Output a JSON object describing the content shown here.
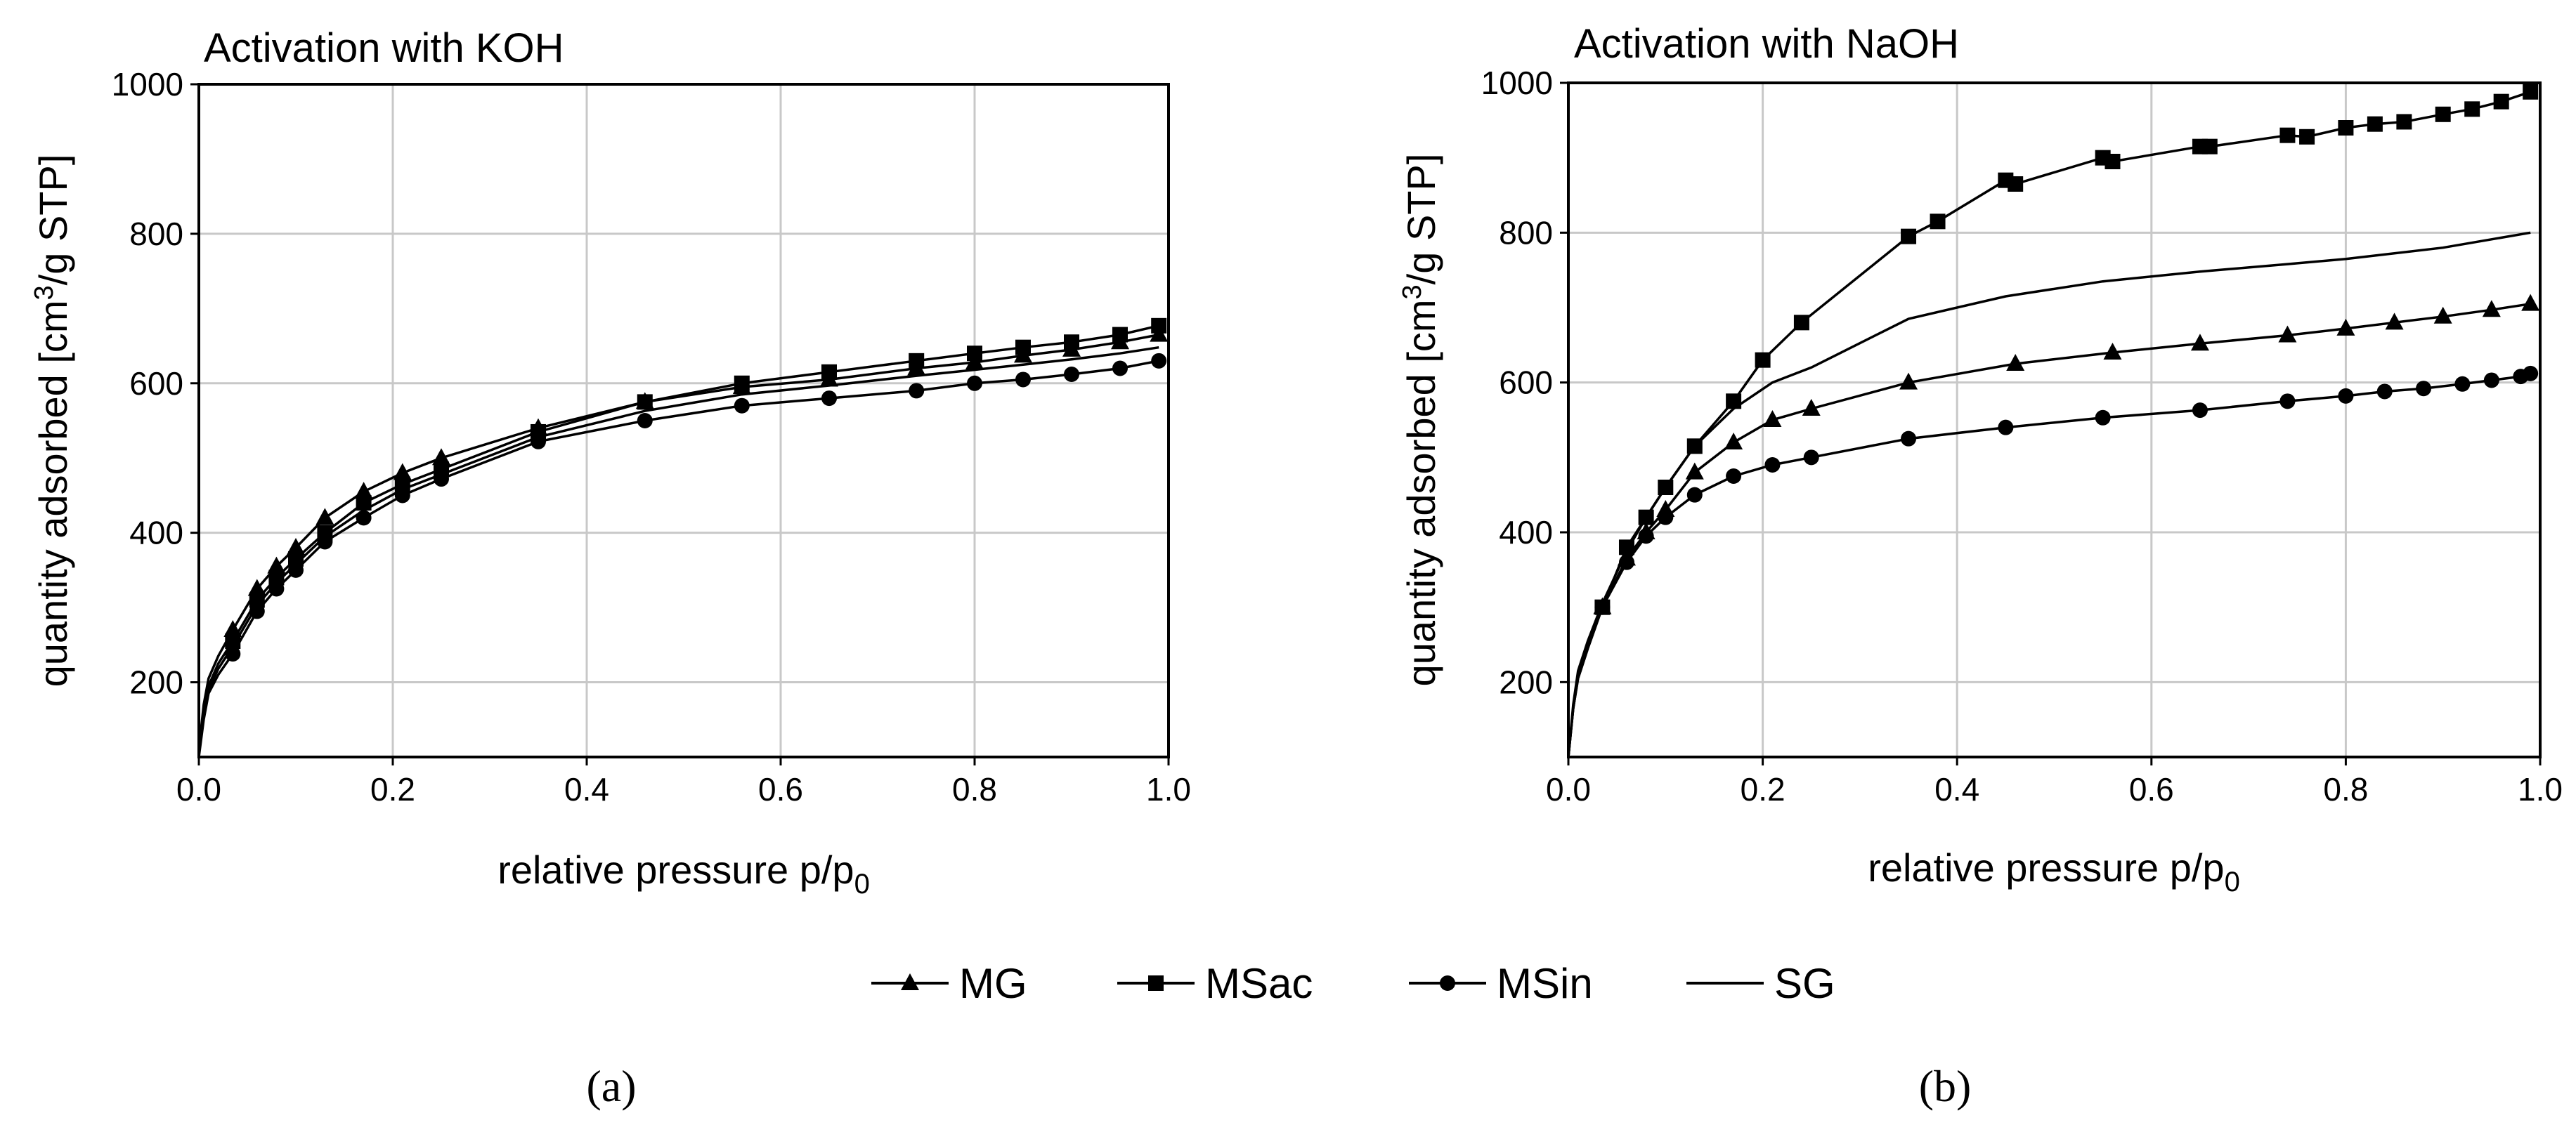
{
  "chart_data": [
    {
      "type": "line",
      "title": "Activation with KOH",
      "xlabel": "relative pressure p/p",
      "xlabel_sub": "0",
      "ylabel": "quantity adsorbed [cm",
      "ylabel_sup": "3",
      "ylabel_end": "/g STP]",
      "xlim": [
        0,
        1.0
      ],
      "ylim": [
        100,
        1000
      ],
      "xticks": [
        0.0,
        0.2,
        0.4,
        0.6,
        0.8,
        1.0
      ],
      "xtick_labels": [
        "0.0",
        "0.2",
        "0.4",
        "0.6",
        "0.8",
        "1.0"
      ],
      "yticks": [
        200,
        400,
        600,
        800,
        1000
      ],
      "ytick_labels": [
        "200",
        "400",
        "600",
        "800",
        "1000"
      ],
      "grid": true,
      "panel_label": "(a)",
      "series": [
        {
          "name": "MG",
          "marker": "triangle",
          "x": [
            0.0,
            0.005,
            0.01,
            0.02,
            0.035,
            0.06,
            0.08,
            0.1,
            0.13,
            0.17,
            0.21,
            0.25,
            0.35,
            0.46,
            0.56,
            0.65,
            0.74,
            0.8,
            0.85,
            0.9,
            0.95,
            0.99
          ],
          "y": [
            110,
            170,
            205,
            235,
            270,
            325,
            355,
            380,
            420,
            455,
            480,
            500,
            540,
            575,
            595,
            605,
            620,
            628,
            637,
            645,
            655,
            665
          ]
        },
        {
          "name": "MSac",
          "marker": "square",
          "x": [
            0.0,
            0.005,
            0.01,
            0.02,
            0.035,
            0.06,
            0.08,
            0.1,
            0.13,
            0.17,
            0.21,
            0.25,
            0.35,
            0.46,
            0.56,
            0.65,
            0.74,
            0.8,
            0.85,
            0.9,
            0.95,
            0.99
          ],
          "y": [
            105,
            160,
            195,
            225,
            255,
            310,
            340,
            365,
            400,
            440,
            465,
            485,
            535,
            575,
            600,
            615,
            630,
            640,
            648,
            655,
            665,
            677
          ]
        },
        {
          "name": "MSin",
          "marker": "circle",
          "x": [
            0.0,
            0.005,
            0.01,
            0.02,
            0.035,
            0.06,
            0.08,
            0.1,
            0.13,
            0.17,
            0.21,
            0.25,
            0.35,
            0.46,
            0.56,
            0.65,
            0.74,
            0.8,
            0.85,
            0.9,
            0.95,
            0.99
          ],
          "y": [
            100,
            150,
            185,
            210,
            238,
            295,
            325,
            350,
            388,
            420,
            450,
            472,
            522,
            550,
            570,
            580,
            590,
            600,
            605,
            612,
            620,
            630
          ]
        },
        {
          "name": "SG",
          "marker": "none",
          "x": [
            0.0,
            0.005,
            0.01,
            0.02,
            0.035,
            0.06,
            0.08,
            0.1,
            0.13,
            0.17,
            0.21,
            0.25,
            0.35,
            0.46,
            0.56,
            0.65,
            0.74,
            0.8,
            0.85,
            0.9,
            0.95,
            0.99
          ],
          "y": [
            103,
            155,
            190,
            218,
            248,
            303,
            333,
            358,
            395,
            430,
            458,
            478,
            528,
            563,
            585,
            597,
            610,
            618,
            625,
            632,
            640,
            648
          ]
        }
      ]
    },
    {
      "type": "line",
      "title": "Activation with NaOH",
      "xlabel": "relative pressure p/p",
      "xlabel_sub": "0",
      "ylabel": "quantity adsorbed [cm",
      "ylabel_sup": "3",
      "ylabel_end": "/g STP]",
      "xlim": [
        0,
        1.0
      ],
      "ylim": [
        100,
        1000
      ],
      "xticks": [
        0.0,
        0.2,
        0.4,
        0.6,
        0.8,
        1.0
      ],
      "xtick_labels": [
        "0.0",
        "0.2",
        "0.4",
        "0.6",
        "0.8",
        "1.0"
      ],
      "yticks": [
        200,
        400,
        600,
        800,
        1000
      ],
      "ytick_labels": [
        "200",
        "400",
        "600",
        "800",
        "1000"
      ],
      "grid": true,
      "panel_label": "(b)",
      "series": [
        {
          "name": "MG",
          "marker": "triangle",
          "x": [
            0.0,
            0.005,
            0.01,
            0.02,
            0.035,
            0.06,
            0.08,
            0.1,
            0.13,
            0.17,
            0.21,
            0.25,
            0.35,
            0.46,
            0.56,
            0.65,
            0.74,
            0.8,
            0.85,
            0.9,
            0.95,
            0.99
          ],
          "y": [
            100,
            165,
            205,
            245,
            300,
            365,
            400,
            430,
            480,
            520,
            550,
            565,
            600,
            625,
            640,
            652,
            663,
            672,
            680,
            688,
            697,
            705
          ]
        },
        {
          "name": "MSac",
          "marker": "square",
          "x": [
            0.0,
            0.005,
            0.01,
            0.02,
            0.035,
            0.06,
            0.08,
            0.1,
            0.13,
            0.17,
            0.2,
            0.24,
            0.35,
            0.38,
            0.45,
            0.46,
            0.55,
            0.56,
            0.65,
            0.66,
            0.74,
            0.76,
            0.8,
            0.83,
            0.86,
            0.9,
            0.93,
            0.96,
            0.99
          ],
          "y": [
            100,
            165,
            210,
            250,
            300,
            380,
            420,
            460,
            515,
            575,
            630,
            680,
            795,
            815,
            870,
            865,
            900,
            895,
            915,
            915,
            930,
            928,
            940,
            945,
            948,
            958,
            965,
            975,
            988
          ]
        },
        {
          "name": "MSin",
          "marker": "circle",
          "x": [
            0.0,
            0.005,
            0.01,
            0.02,
            0.035,
            0.06,
            0.08,
            0.1,
            0.13,
            0.17,
            0.21,
            0.25,
            0.35,
            0.45,
            0.55,
            0.65,
            0.74,
            0.8,
            0.84,
            0.88,
            0.92,
            0.95,
            0.98,
            0.99
          ],
          "y": [
            100,
            165,
            205,
            245,
            300,
            360,
            395,
            420,
            450,
            475,
            490,
            500,
            525,
            540,
            553,
            563,
            575,
            582,
            588,
            592,
            598,
            603,
            608,
            612
          ]
        },
        {
          "name": "SG",
          "marker": "none",
          "x": [
            0.0,
            0.005,
            0.01,
            0.02,
            0.035,
            0.06,
            0.08,
            0.1,
            0.13,
            0.17,
            0.21,
            0.25,
            0.35,
            0.45,
            0.55,
            0.65,
            0.74,
            0.8,
            0.9,
            0.99
          ],
          "y": [
            100,
            170,
            215,
            255,
            305,
            375,
            420,
            460,
            515,
            565,
            600,
            620,
            685,
            715,
            735,
            748,
            758,
            765,
            780,
            800
          ]
        }
      ]
    }
  ],
  "legend": {
    "items": [
      {
        "name": "MG",
        "marker": "triangle"
      },
      {
        "name": "MSac",
        "marker": "square"
      },
      {
        "name": "MSin",
        "marker": "circle"
      },
      {
        "name": "SG",
        "marker": "none"
      }
    ]
  }
}
